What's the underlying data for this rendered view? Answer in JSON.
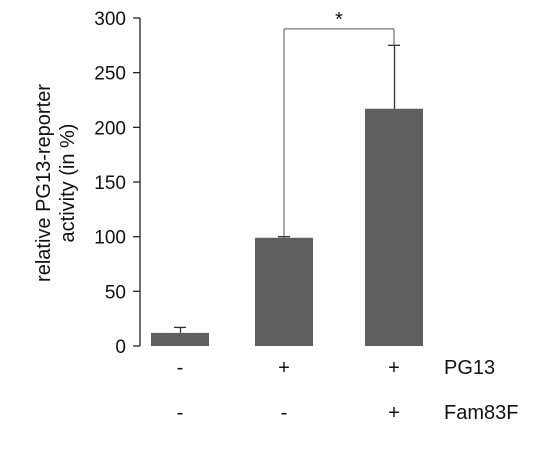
{
  "chart_data": {
    "type": "bar",
    "categories": [
      "- / -",
      "+ / -",
      "+ / +"
    ],
    "values": [
      12,
      99,
      217
    ],
    "errors": [
      5,
      1,
      58
    ],
    "ylabel": "relative PG13-reporter activity (in %)",
    "ylabel_lines": [
      "relative PG13-reporter",
      "activity (in %)"
    ],
    "ylim": [
      0,
      300
    ],
    "yticks": [
      0,
      50,
      100,
      150,
      200,
      250,
      300
    ],
    "grid": false,
    "bar_color": "#5f5f5f",
    "conditions": [
      {
        "label": "PG13",
        "signs": [
          "-",
          "+",
          "+"
        ]
      },
      {
        "label": "Fam83F",
        "signs": [
          "-",
          "-",
          "+"
        ]
      }
    ],
    "significance": {
      "from": 1,
      "to": 2,
      "label": "*"
    }
  }
}
